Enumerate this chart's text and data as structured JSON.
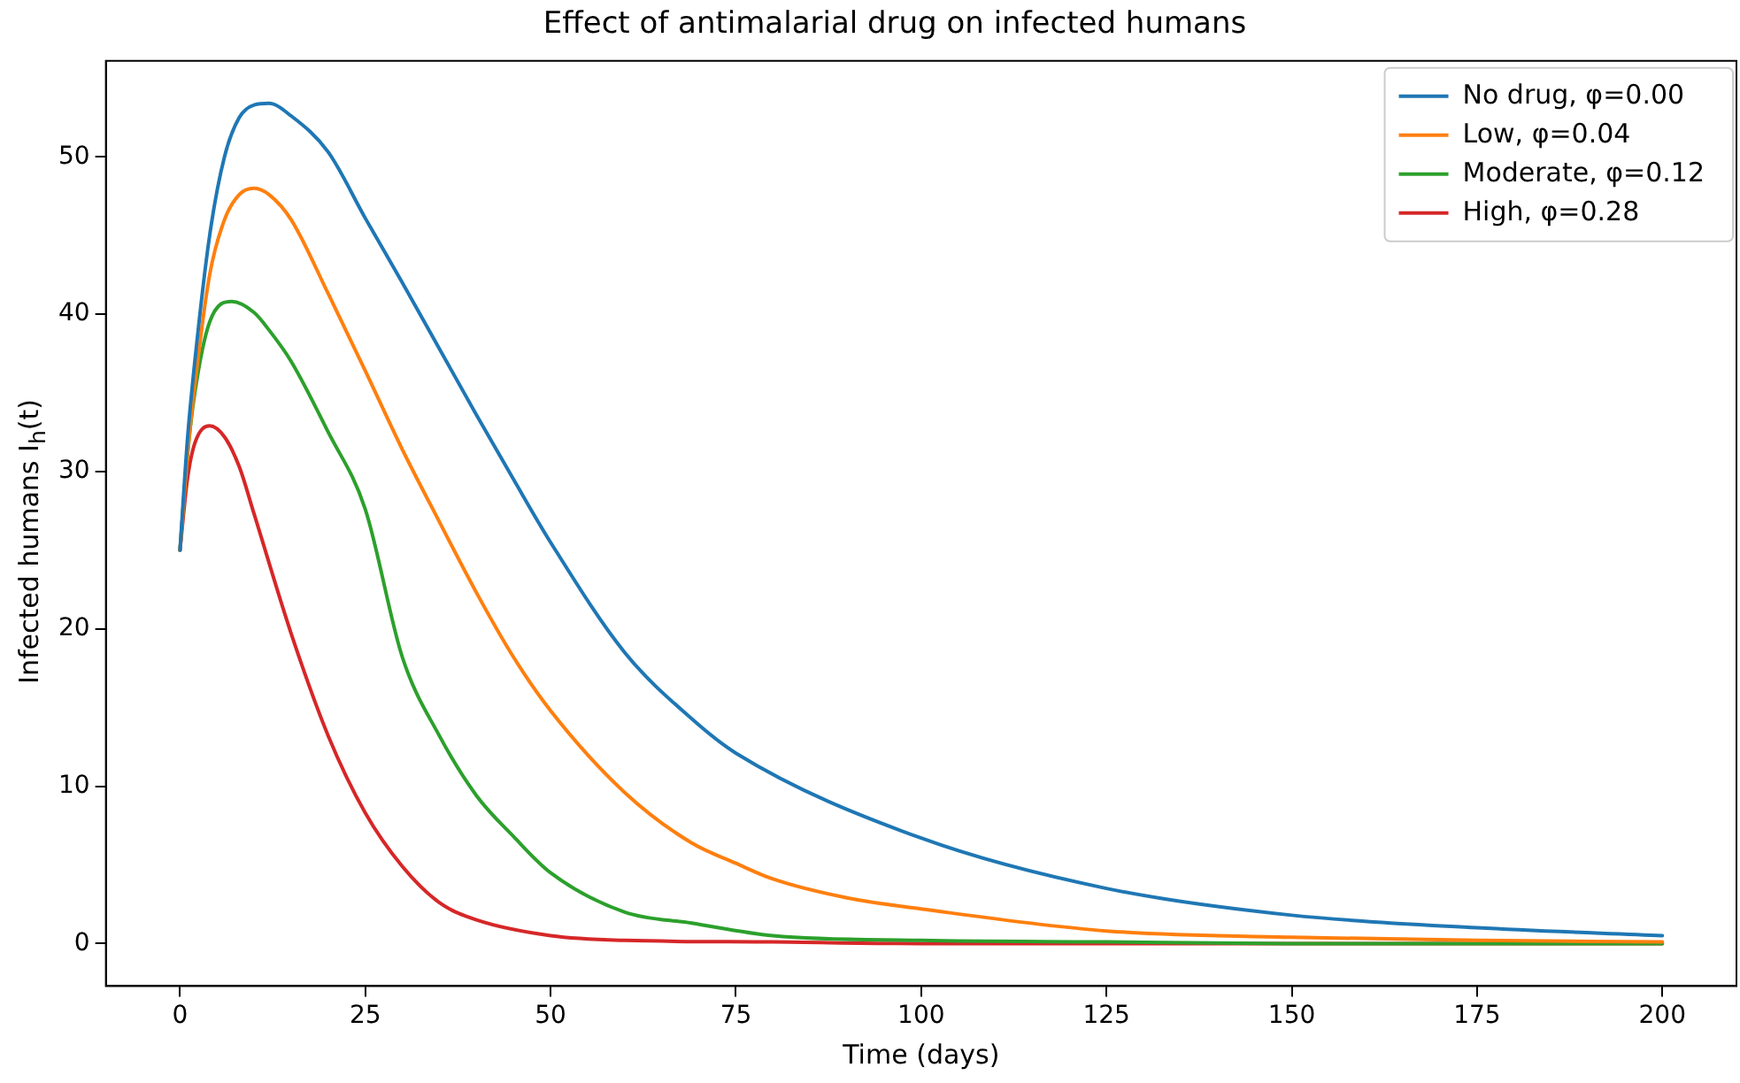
{
  "chart_data": {
    "type": "line",
    "title": "Effect of antimalarial drug on infected humans",
    "xlabel": "Time (days)",
    "ylabel": "Infected humans I$_{h}$(t)",
    "xlim": [
      -10,
      210
    ],
    "xticks": [
      0,
      25,
      50,
      75,
      100,
      125,
      150,
      175,
      200
    ],
    "ylim": [
      -2.7,
      56.1
    ],
    "yticks": [
      0,
      10,
      20,
      30,
      40,
      50
    ],
    "grid": false,
    "legend": "top right",
    "marker": "none",
    "line_style": "solid",
    "series": [
      {
        "name": "No drug, φ=0.00",
        "color": "#1f77b4",
        "x": [
          0,
          1,
          2,
          4,
          6,
          8,
          10,
          12,
          15,
          20,
          25,
          30,
          35,
          40,
          45,
          50,
          60,
          69,
          75,
          100,
          125,
          150,
          175,
          200
        ],
        "values": [
          25,
          32,
          37,
          45,
          50,
          52.5,
          53.3,
          53.4,
          52.6,
          50.3,
          46.1,
          42,
          37.8,
          33.6,
          29.5,
          25.5,
          18.5,
          14.3,
          12.1,
          6.7,
          3.5,
          1.8,
          1,
          0.5
        ]
      },
      {
        "name": "Low, φ=0.04",
        "color": "#ff7f0e",
        "x": [
          0,
          1,
          2,
          4,
          6,
          8,
          10,
          12,
          15,
          20,
          25,
          30,
          35,
          40,
          45,
          50,
          60,
          69,
          75,
          80,
          90,
          100,
          125,
          150,
          175,
          200
        ],
        "values": [
          25,
          31,
          35.5,
          42.5,
          46,
          47.6,
          48,
          47.6,
          46,
          41.3,
          36.4,
          31.4,
          26.8,
          22.3,
          18.2,
          14.8,
          9.6,
          6.4,
          5.1,
          4.1,
          2.9,
          2.2,
          0.8,
          0.4,
          0.2,
          0.1
        ]
      },
      {
        "name": "Moderate, φ=0.12",
        "color": "#2ca02c",
        "x": [
          0,
          1,
          2,
          4,
          7,
          10,
          12,
          15,
          20,
          25,
          30,
          35,
          40,
          45,
          50,
          60,
          69,
          80,
          100,
          125,
          150,
          200
        ],
        "values": [
          25,
          31,
          35,
          39.5,
          40.8,
          40.1,
          39,
          37,
          32.5,
          27.6,
          18.2,
          13.2,
          9.4,
          6.8,
          4.5,
          2,
          1.3,
          0.5,
          0.2,
          0.1,
          0,
          0
        ]
      },
      {
        "name": "High, φ=0.28",
        "color": "#d62728",
        "x": [
          0,
          1,
          2,
          4,
          6,
          8,
          10,
          15,
          20,
          25,
          30,
          35,
          40,
          50,
          60,
          80,
          100,
          150,
          200
        ],
        "values": [
          25,
          29.5,
          31.8,
          32.9,
          32.2,
          30.3,
          27.3,
          19.7,
          13.2,
          8.3,
          4.9,
          2.6,
          1.5,
          0.5,
          0.2,
          0.1,
          0,
          0,
          0
        ]
      }
    ]
  }
}
